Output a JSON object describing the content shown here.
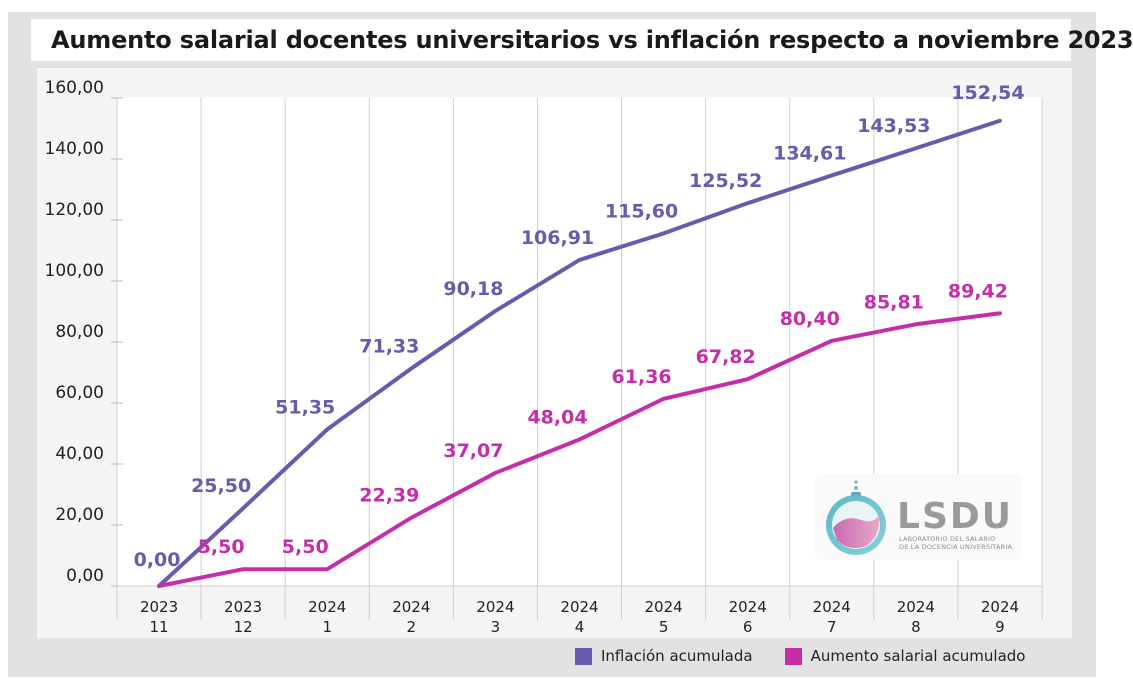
{
  "title": "Aumento salarial docentes universitarios vs inflación respecto a noviembre 2023",
  "chart_data": {
    "type": "line",
    "categories": [
      [
        "2023",
        "11"
      ],
      [
        "2023",
        "12"
      ],
      [
        "2024",
        "1"
      ],
      [
        "2024",
        "2"
      ],
      [
        "2024",
        "3"
      ],
      [
        "2024",
        "4"
      ],
      [
        "2024",
        "5"
      ],
      [
        "2024",
        "6"
      ],
      [
        "2024",
        "7"
      ],
      [
        "2024",
        "8"
      ],
      [
        "2024",
        "9"
      ]
    ],
    "ylim": [
      0,
      160
    ],
    "yticks": [
      "0,00",
      "20,00",
      "40,00",
      "60,00",
      "80,00",
      "100,00",
      "120,00",
      "140,00",
      "160,00"
    ],
    "grid": "vertical",
    "legend_position": "bottom-right",
    "series": [
      {
        "name": "Inflación acumulada",
        "color": "#6a5aad",
        "values": [
          0.0,
          25.5,
          51.35,
          71.33,
          90.18,
          106.91,
          115.6,
          125.52,
          134.61,
          143.53,
          152.54
        ],
        "labels": [
          "0,00",
          "25,50",
          "51,35",
          "71,33",
          "90,18",
          "106,91",
          "115,60",
          "125,52",
          "134,61",
          "143,53",
          "152,54"
        ]
      },
      {
        "name": "Aumento salarial acumulado",
        "color": "#c52ea8",
        "values": [
          0.0,
          5.5,
          5.5,
          22.39,
          37.07,
          48.04,
          61.36,
          67.82,
          80.4,
          85.81,
          89.42
        ],
        "labels": [
          "",
          "5,50",
          "5,50",
          "22,39",
          "37,07",
          "48,04",
          "61,36",
          "67,82",
          "80,40",
          "85,81",
          "89,42"
        ]
      }
    ]
  },
  "logo": {
    "name": "LSDU",
    "subtitle_line1": "LABORATORIO DEL SALARIO",
    "subtitle_line2": "DE LA DOCENCIA UNIVERSITARIA."
  }
}
